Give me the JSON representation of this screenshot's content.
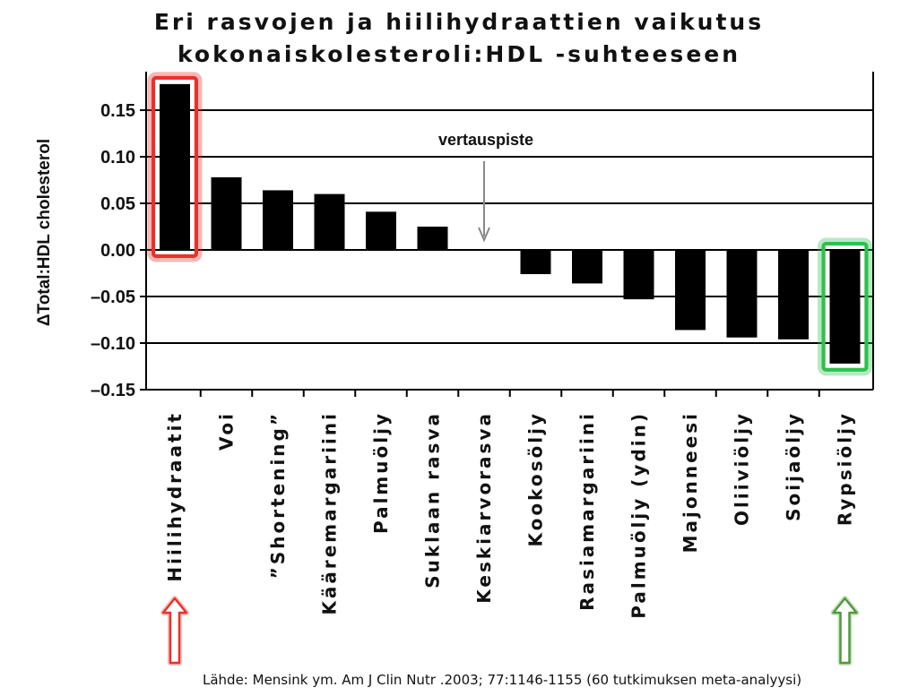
{
  "title_line1": "Eri rasvojen ja hiilihydraattien vaikutus",
  "title_line2": "kokonaiskolesteroli:HDL -suhteeseen",
  "source": "Lähde: Mensink ym. Am J Clin Nutr .2003; 77:1146-1155 (60 tutkimuksen meta-analyysi)",
  "colors": {
    "bar": "#000000",
    "highlight_up": "#e8312a",
    "highlight_down": "#2fbf4e",
    "arrow_up": "#e8312a",
    "arrow_down": "#4f9a3a",
    "reference_arrow": "#888888"
  },
  "chart_data": {
    "type": "bar",
    "title": "Eri rasvojen ja hiilihydraattien vaikutus kokonaiskolesteroli:HDL -suhteeseen",
    "ylabel": "ΔTotal:HDL cholesterol",
    "xlabel": "",
    "ylim": [
      -0.15,
      0.18
    ],
    "yticks": [
      0.15,
      0.1,
      0.05,
      0.0,
      -0.05,
      -0.1,
      -0.15
    ],
    "ytick_labels": [
      "0.15",
      "0.10",
      "0.05",
      "0.00",
      "–0.05",
      "–0.10",
      "–0.15"
    ],
    "grid": true,
    "categories": [
      "Hiilihydraatit",
      "Voi",
      "”Shortening”",
      "Kääremargariini",
      "Palmuöljy",
      "Suklaan rasva",
      "Keskiarvorasva",
      "Kookosöljy",
      "Rasiamargariini",
      "Palmuöljy (ydin)",
      "Majonneesi",
      "Oliiviöljy",
      "Soijaöljy",
      "Rypsiöljy"
    ],
    "values": [
      0.178,
      0.078,
      0.064,
      0.06,
      0.041,
      0.025,
      0.0,
      -0.026,
      -0.036,
      -0.053,
      -0.086,
      -0.094,
      -0.096,
      -0.122
    ],
    "annotation": "vertauspiste",
    "annotation_category": "Keskiarvorasva",
    "highlighted": {
      "up": "Hiilihydraatit",
      "down": "Rypsiöljy"
    }
  }
}
